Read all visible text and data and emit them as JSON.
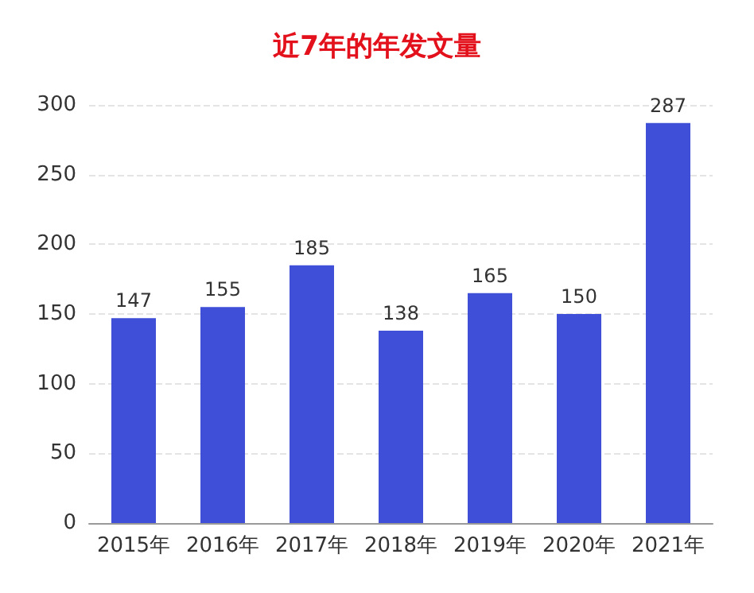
{
  "chart_data": {
    "type": "bar",
    "title": "近7年的年发文量",
    "categories": [
      "2015年",
      "2016年",
      "2017年",
      "2018年",
      "2019年",
      "2020年",
      "2021年"
    ],
    "values": [
      147,
      155,
      185,
      138,
      165,
      150,
      287
    ],
    "color": "#3f4fd8",
    "ylim": [
      0,
      300
    ],
    "yticks": [
      0,
      50,
      100,
      150,
      200,
      250,
      300
    ],
    "grid": "y",
    "data_labels": true
  }
}
